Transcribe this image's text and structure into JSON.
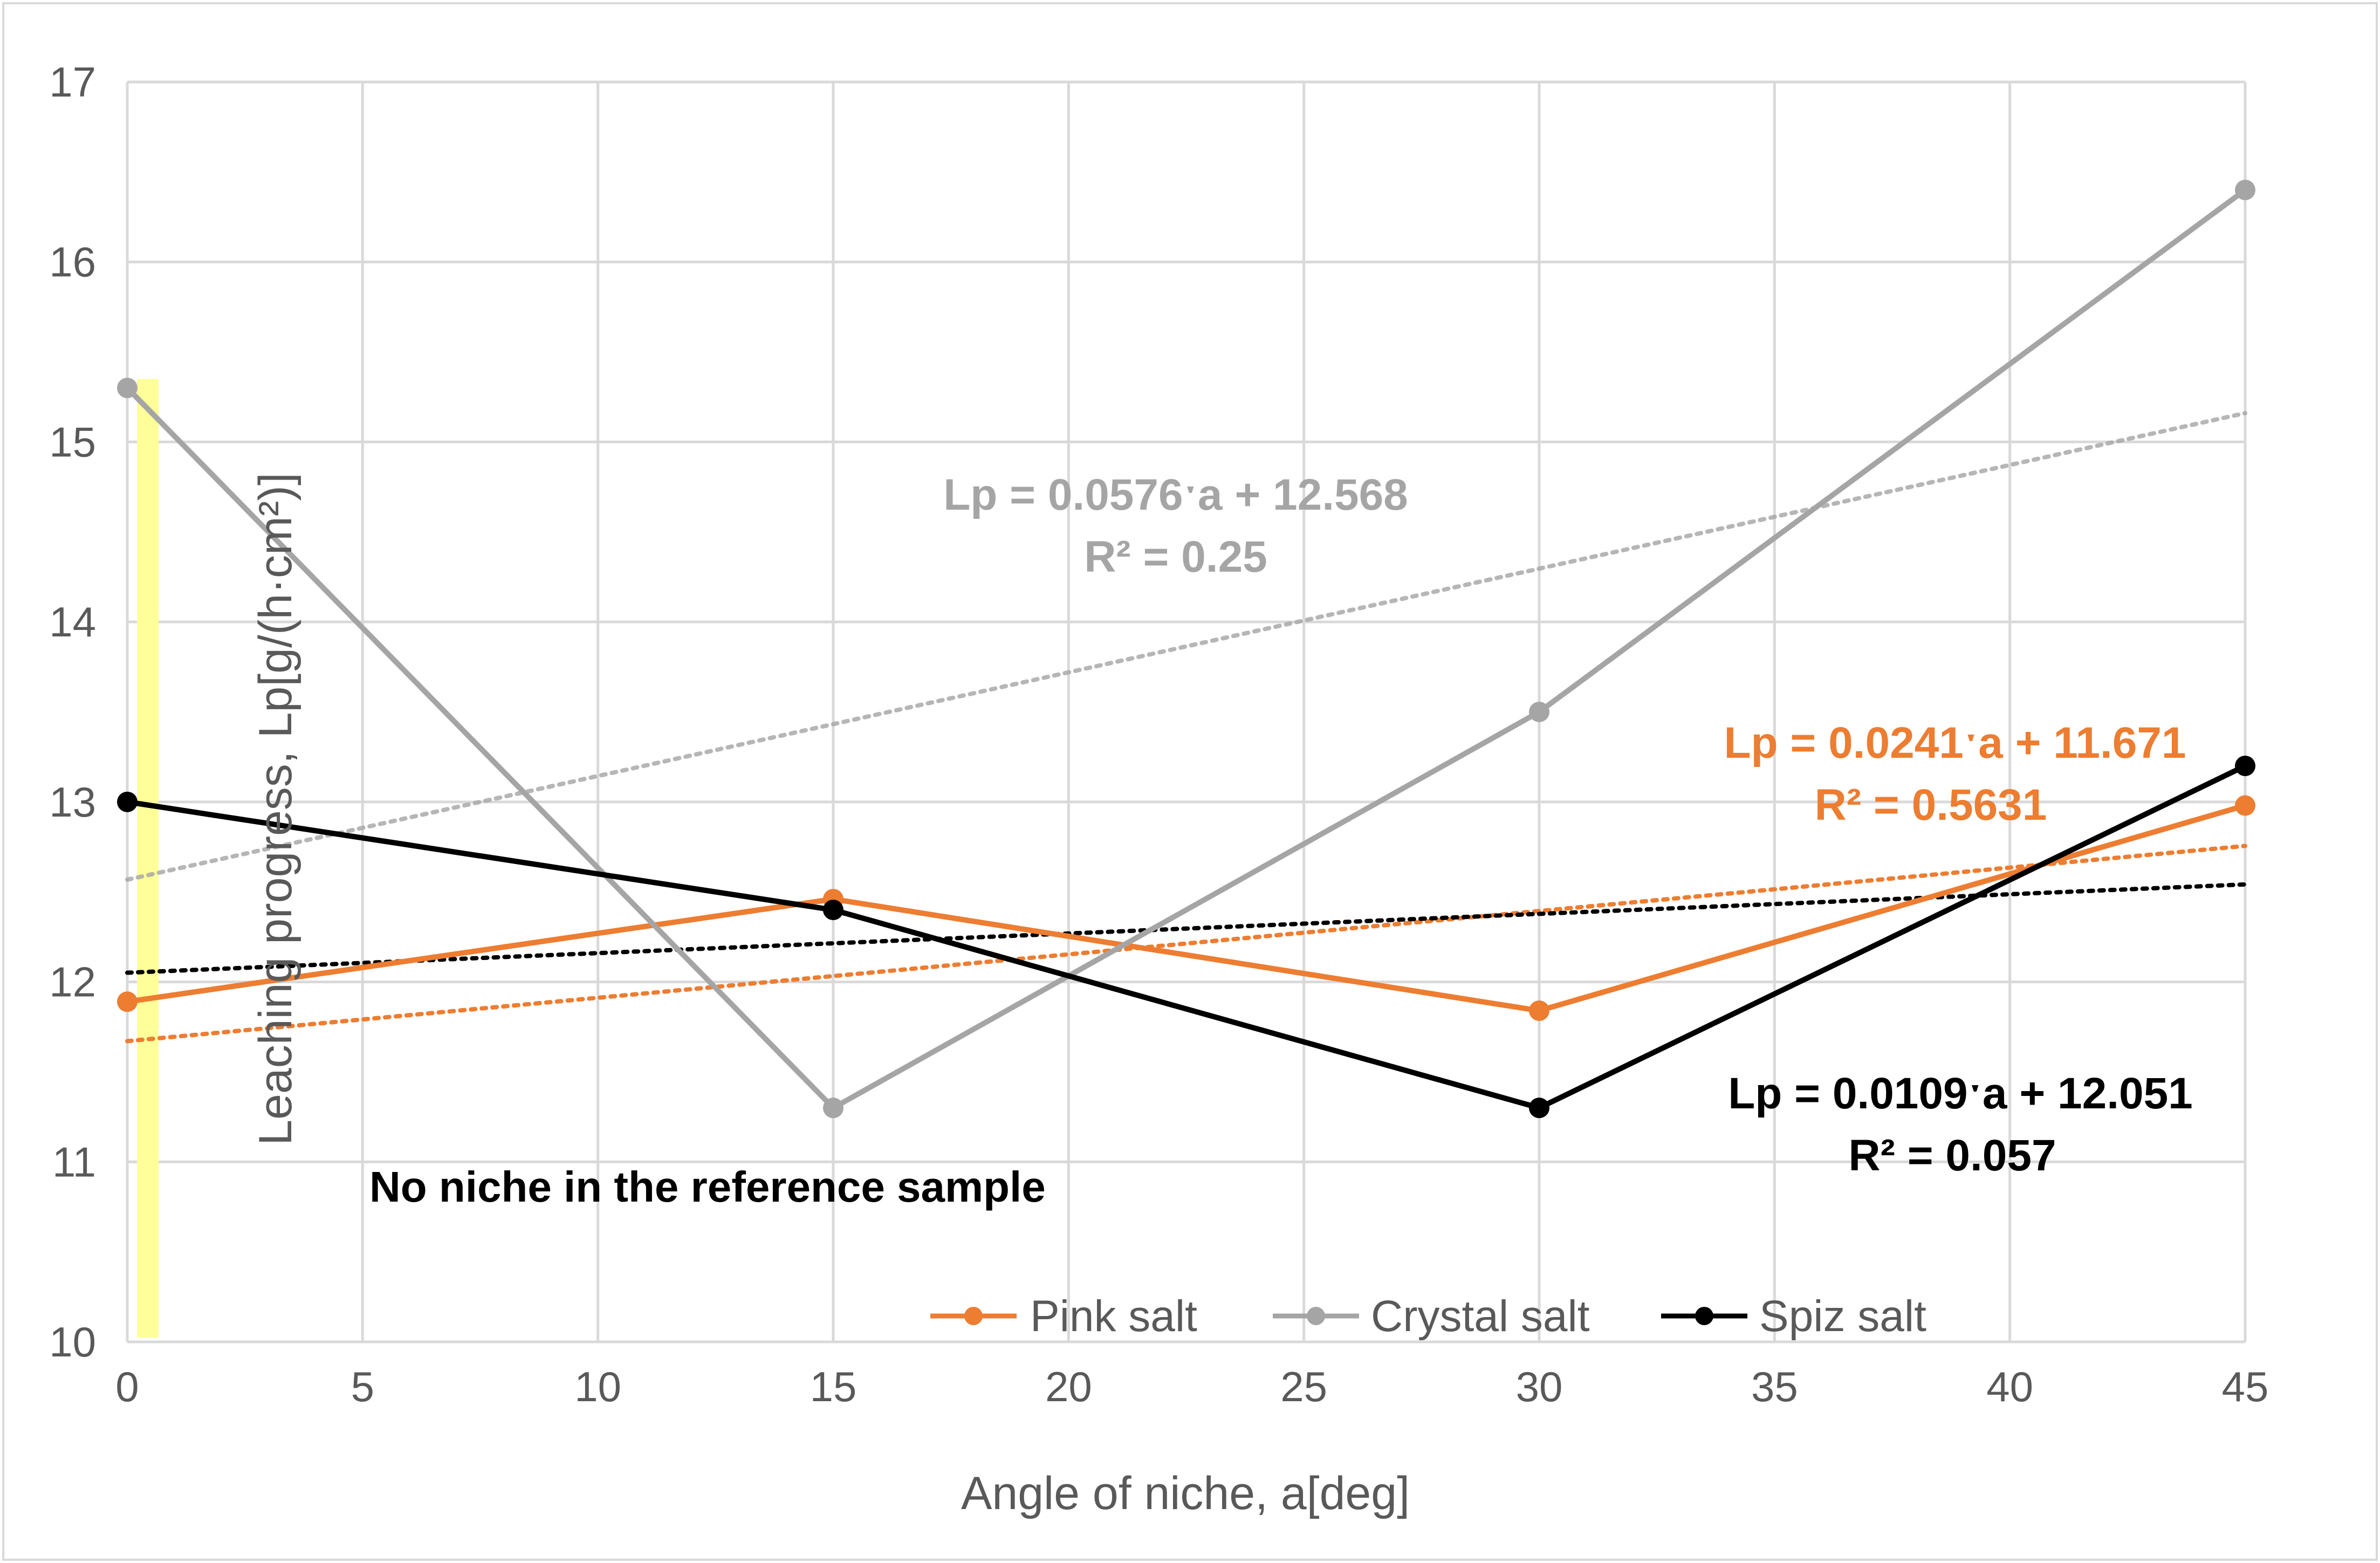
{
  "chart_data": {
    "type": "line",
    "title": "",
    "xlabel": "Angle of niche, a[deg]",
    "ylabel": "Leaching progress, Lp[g/(h·cm²)]",
    "xlim": [
      0,
      45
    ],
    "ylim": [
      10,
      17
    ],
    "x_ticks": [
      "0",
      "5",
      "10",
      "15",
      "20",
      "25",
      "30",
      "35",
      "40",
      "45"
    ],
    "y_ticks": [
      "10",
      "11",
      "12",
      "13",
      "14",
      "15",
      "16",
      "17"
    ],
    "x_tick_values": [
      0,
      5,
      10,
      15,
      20,
      25,
      30,
      35,
      40,
      45
    ],
    "y_tick_values": [
      10,
      11,
      12,
      13,
      14,
      15,
      16,
      17
    ],
    "grid": true,
    "x": [
      0,
      15,
      30,
      45
    ],
    "series": [
      {
        "name": "Pink salt",
        "color": "#ED7D31",
        "values": [
          11.89,
          12.46,
          11.84,
          12.98
        ],
        "trend": {
          "slope": 0.0241,
          "intercept": 11.671,
          "equation": "Lp = 0.0241ˑa + 11.671",
          "r2": "R² = 0.5631"
        }
      },
      {
        "name": "Crystal salt",
        "color": "#A5A5A5",
        "values": [
          15.3,
          11.3,
          13.5,
          16.4
        ],
        "trend": {
          "slope": 0.0576,
          "intercept": 12.568,
          "equation": "Lp = 0.0576ˑa + 12.568",
          "r2": "R² = 0.25"
        }
      },
      {
        "name": "Spiz salt",
        "color": "#000000",
        "values": [
          13.0,
          12.4,
          11.3,
          13.2
        ],
        "trend": {
          "slope": 0.0109,
          "intercept": 12.051,
          "equation": "Lp = 0.0109ˑa + 12.051",
          "r2": "R² = 0.057"
        }
      }
    ],
    "annotation": "No niche in the reference sample",
    "highlight_color": "#FFFF99",
    "legend_position": "bottom-center"
  }
}
